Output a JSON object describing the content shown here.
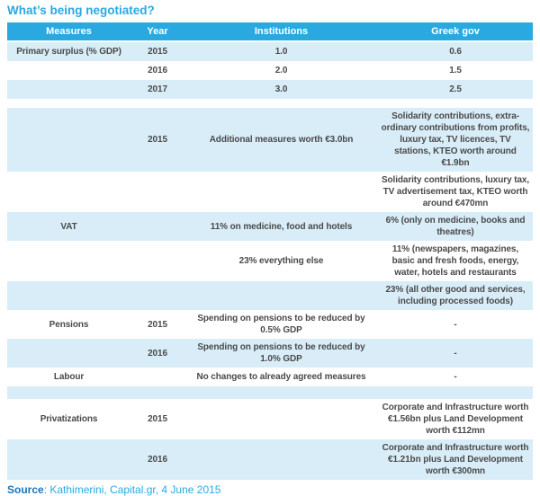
{
  "chart_data": {
    "type": "table",
    "title": "What’s being negotiated?",
    "columns": [
      "Measures",
      "Year",
      "Institutions",
      "Greek gov"
    ],
    "rows": [
      {
        "measures": "Primary surplus (% GDP)",
        "year": "2015",
        "institutions": "1.0",
        "greek_gov": "0.6"
      },
      {
        "measures": "",
        "year": "2016",
        "institutions": "2.0",
        "greek_gov": "1.5"
      },
      {
        "measures": "",
        "year": "2017",
        "institutions": "3.0",
        "greek_gov": "2.5"
      },
      {
        "measures": "",
        "year": "",
        "institutions": "",
        "greek_gov": ""
      },
      {
        "measures": "",
        "year": "2015",
        "institutions": "Additional measures worth €3.0bn",
        "greek_gov": "Solidarity contributions, extra-ordinary contributions from profits, luxury tax, TV licences, TV stations, KTEO worth around €1.9bn"
      },
      {
        "measures": "",
        "year": "",
        "institutions": "",
        "greek_gov": "Solidarity contributions, luxury tax, TV advertisement tax, KTEO worth around €470mn"
      },
      {
        "measures": "VAT",
        "year": "",
        "institutions": "11% on medicine, food and hotels",
        "greek_gov": "6% (only on medicine, books and theatres)"
      },
      {
        "measures": "",
        "year": "",
        "institutions": "23% everything else",
        "greek_gov": "11% (newspapers, magazines, basic and fresh foods, energy, water, hotels and restaurants"
      },
      {
        "measures": "",
        "year": "",
        "institutions": "",
        "greek_gov": "23% (all other good and services, including processed foods)"
      },
      {
        "measures": "Pensions",
        "year": "2015",
        "institutions": "Spending on pensions to be reduced by 0.5% GDP",
        "greek_gov": "-"
      },
      {
        "measures": "",
        "year": "2016",
        "institutions": "Spending on pensions to be reduced by 1.0% GDP",
        "greek_gov": "-"
      },
      {
        "measures": "Labour",
        "year": "",
        "institutions": "No changes to already agreed measures",
        "greek_gov": "-"
      },
      {
        "measures": "",
        "year": "",
        "institutions": "",
        "greek_gov": ""
      },
      {
        "measures": "Privatizations",
        "year": "2015",
        "institutions": "",
        "greek_gov": "Corporate and Infrastructure worth €1.56bn plus Land Development worth €112mn"
      },
      {
        "measures": "",
        "year": "2016",
        "institutions": "",
        "greek_gov": "Corporate and Infrastructure worth €1.21bn plus Land Development worth €300mn"
      }
    ],
    "source": "Kathimerini, Capital.gr, 4 June 2015",
    "layout": {
      "legend": "none",
      "grid": "off"
    }
  },
  "source_line": {
    "label": "Source",
    "rest": ": Kathimerini, Capital.gr, 4 June 2015"
  },
  "colors": {
    "accent": "#29a9e0",
    "header_text": "#ffffff",
    "row_alt": "#d8edf8",
    "body_text": "#4a4a4a",
    "source_label": "#1b75bb"
  }
}
